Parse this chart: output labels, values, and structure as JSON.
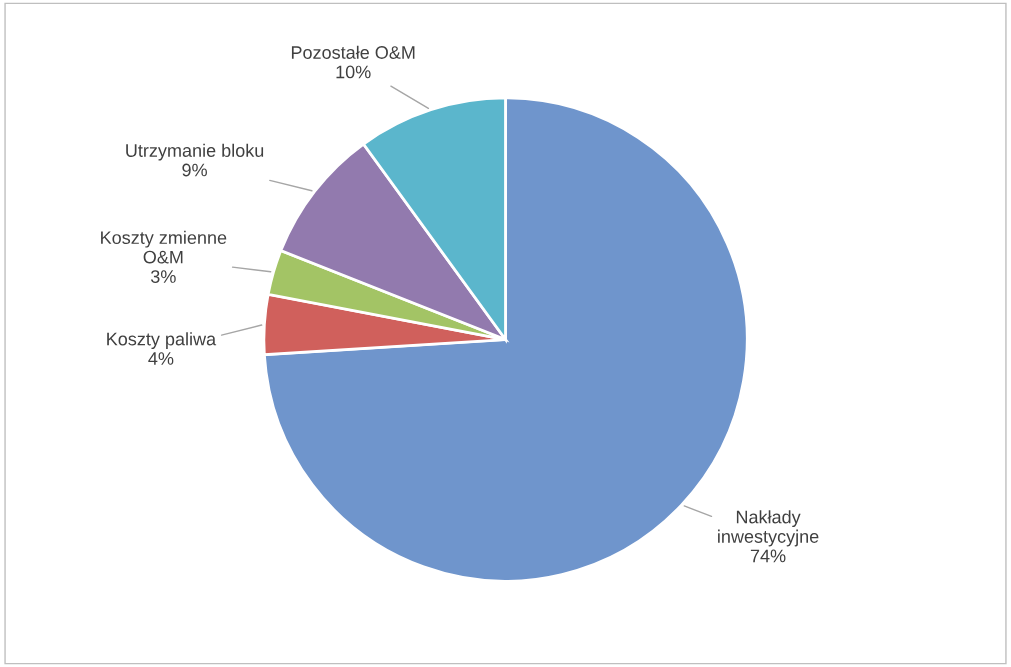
{
  "chart_data": {
    "type": "pie",
    "categories": [
      "Nakłady\ninwestycyjne",
      "Koszty paliwa",
      "Koszty zmienne\nO&M",
      "Utrzymanie bloku",
      "Pozostałe O&M"
    ],
    "values": [
      74,
      4,
      3,
      9,
      10
    ],
    "value_labels": [
      "74%",
      "4%",
      "3%",
      "9%",
      "10%"
    ],
    "colors": [
      "#6f95cc",
      "#d0605c",
      "#a3c465",
      "#927aae",
      "#5bb6cc"
    ],
    "legend": false
  }
}
